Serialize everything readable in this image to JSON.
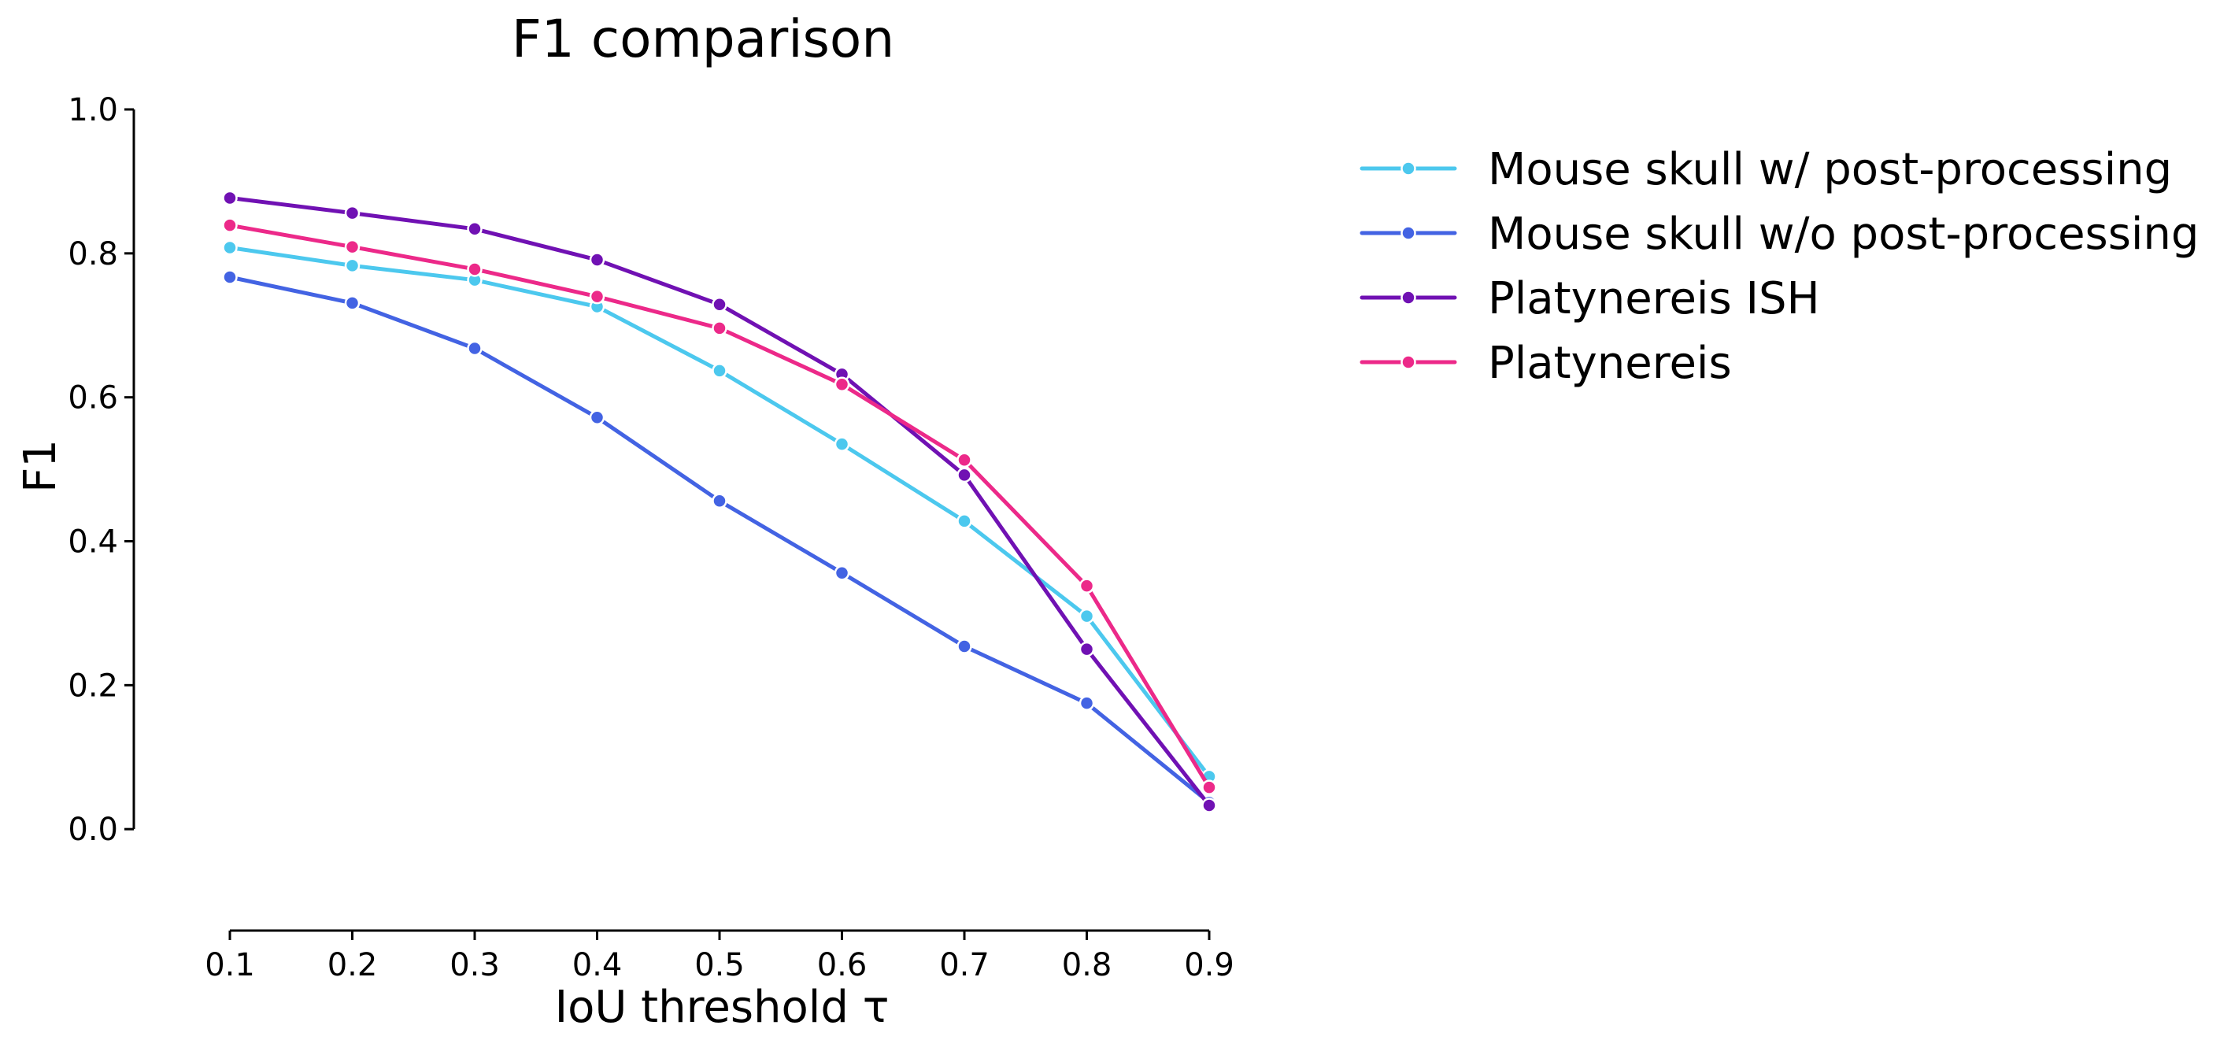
{
  "chart_data": {
    "type": "line",
    "title": "F1 comparison",
    "xlabel": "IoU threshold τ",
    "ylabel": "F1",
    "x": [
      0.1,
      0.2,
      0.3,
      0.4,
      0.5,
      0.6,
      0.7,
      0.8,
      0.9
    ],
    "x_ticks": [
      "0.1",
      "0.2",
      "0.3",
      "0.4",
      "0.5",
      "0.6",
      "0.7",
      "0.8",
      "0.9"
    ],
    "y_ticks": [
      "0.0",
      "0.2",
      "0.4",
      "0.6",
      "0.8",
      "1.0"
    ],
    "xlim": [
      0.1,
      0.9
    ],
    "ylim": [
      -0.13,
      1.0
    ],
    "grid": false,
    "legend_position": "right-outside-top",
    "series": [
      {
        "name": "Mouse skull w/ post-processing",
        "color": "#4cc8ee",
        "values": [
          0.808,
          0.783,
          0.763,
          0.726,
          0.637,
          0.535,
          0.428,
          0.296,
          0.073
        ]
      },
      {
        "name": "Mouse skull w/o post-processing",
        "color": "#4363e3",
        "values": [
          0.767,
          0.731,
          0.668,
          0.572,
          0.456,
          0.356,
          0.254,
          0.175,
          0.037
        ]
      },
      {
        "name": "Platynereis ISH",
        "color": "#7011b3",
        "values": [
          0.877,
          0.856,
          0.834,
          0.791,
          0.729,
          0.632,
          0.492,
          0.25,
          0.033
        ]
      },
      {
        "name": "Platynereis",
        "color": "#ec2989",
        "values": [
          0.839,
          0.809,
          0.778,
          0.74,
          0.696,
          0.618,
          0.513,
          0.338,
          0.058
        ]
      }
    ]
  }
}
